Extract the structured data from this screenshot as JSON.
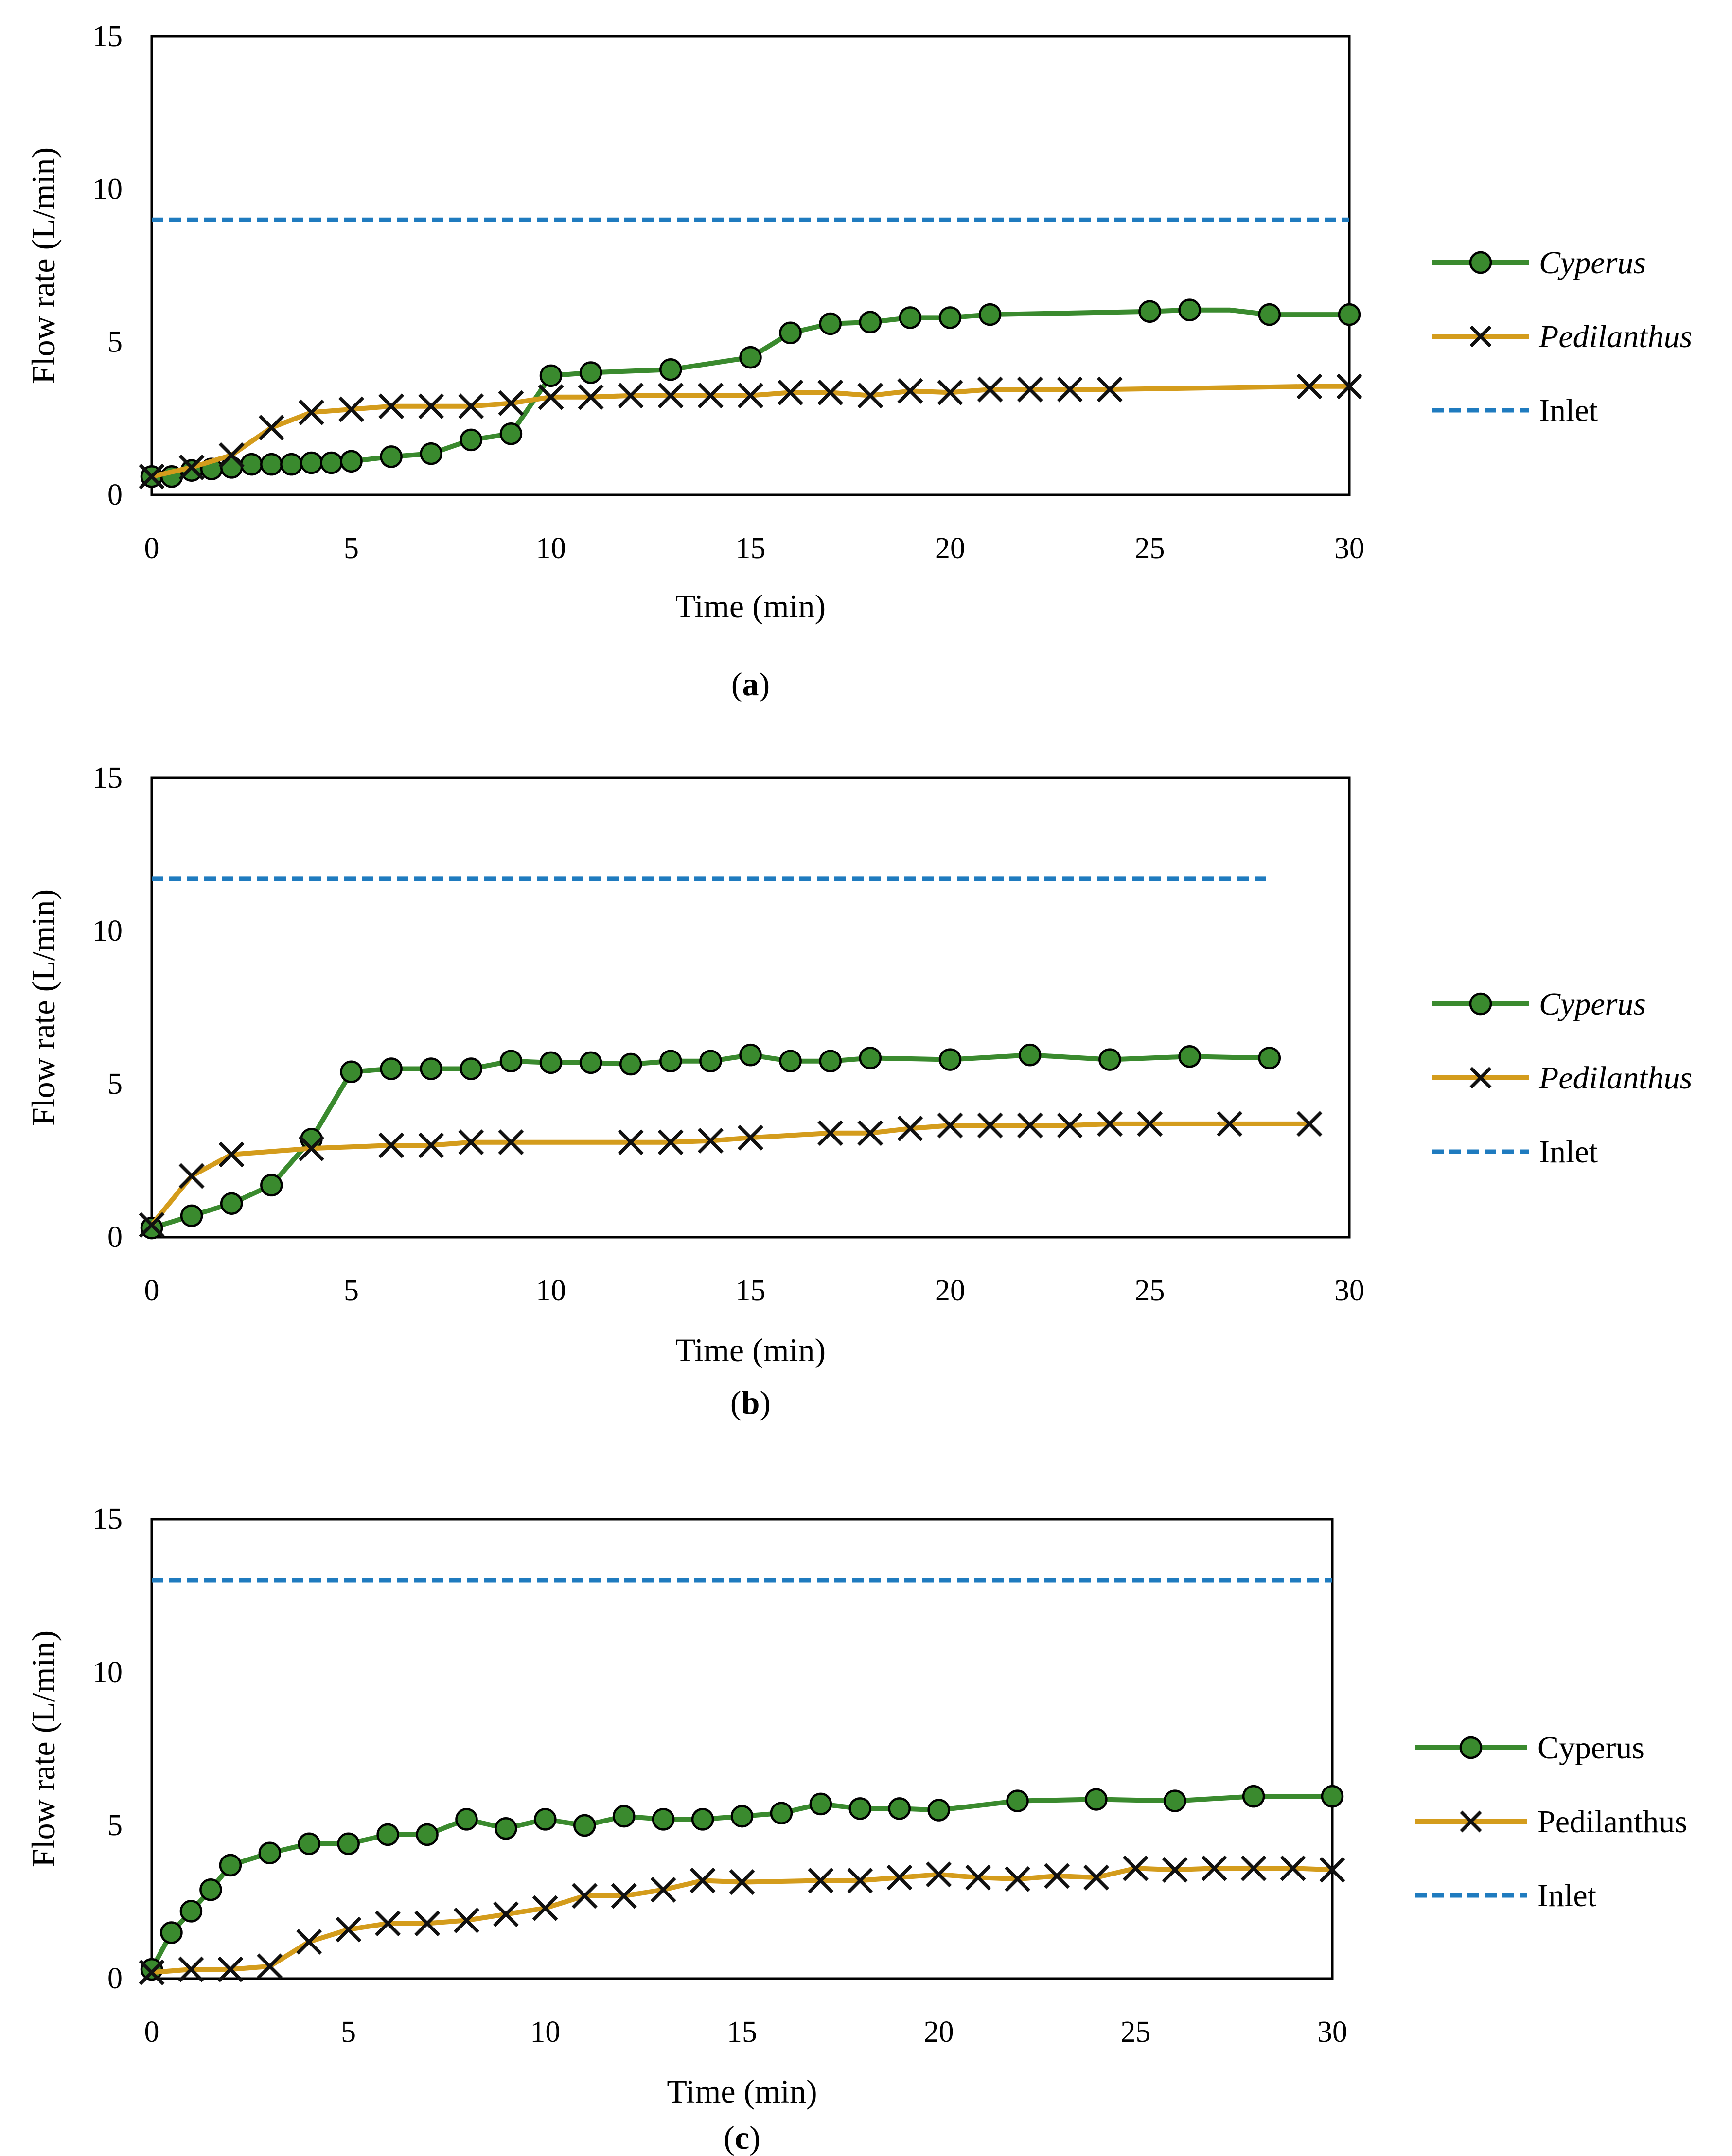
{
  "figure": {
    "panels": [
      {
        "id": "a",
        "caption_open": "(",
        "caption_letter": "a",
        "caption_close": ")",
        "legend_italic": true,
        "chart_data": {
          "type": "line",
          "title": "",
          "xlabel": "Time (min)",
          "ylabel": "Flow rate (L/min)",
          "xlim": [
            0,
            30
          ],
          "ylim": [
            0,
            15
          ],
          "xticks": [
            0,
            5,
            10,
            15,
            20,
            25,
            30
          ],
          "yticks": [
            0,
            5,
            10,
            15
          ],
          "grid": false,
          "legend_position": "right",
          "series": [
            {
              "name": "Cyperus",
              "color": "#3a8a2e",
              "marker": "circle",
              "x": [
                0,
                0.5,
                1,
                1.5,
                2,
                2.5,
                3,
                3.5,
                4,
                4.5,
                5,
                6,
                7,
                8,
                9,
                10,
                11,
                13,
                15,
                16,
                17,
                18,
                19,
                20,
                21,
                25,
                26,
                27,
                28,
                30
              ],
              "y": [
                0.6,
                0.6,
                0.8,
                0.85,
                0.9,
                1.0,
                1.0,
                1.0,
                1.05,
                1.05,
                1.1,
                1.25,
                1.35,
                1.8,
                2.0,
                3.9,
                4.0,
                4.1,
                4.5,
                5.3,
                5.6,
                5.65,
                5.8,
                5.8,
                5.9,
                6.0,
                6.05,
                6.05,
                5.9,
                5.9
              ],
              "marked": [
                true,
                true,
                true,
                true,
                true,
                true,
                true,
                true,
                true,
                true,
                true,
                true,
                true,
                true,
                true,
                true,
                true,
                true,
                true,
                true,
                true,
                true,
                true,
                true,
                true,
                true,
                true,
                false,
                true,
                true
              ]
            },
            {
              "name": "Pedilanthus",
              "color": "#d49c1c",
              "marker": "x",
              "x": [
                0,
                1,
                2,
                3,
                4,
                5,
                6,
                7,
                8,
                9,
                10,
                11,
                12,
                13,
                14,
                15,
                16,
                17,
                18,
                19,
                20,
                21,
                22,
                23,
                24,
                29,
                30
              ],
              "y": [
                0.6,
                0.9,
                1.3,
                2.2,
                2.7,
                2.8,
                2.9,
                2.9,
                2.9,
                3.0,
                3.2,
                3.2,
                3.25,
                3.25,
                3.25,
                3.25,
                3.35,
                3.35,
                3.25,
                3.4,
                3.35,
                3.45,
                3.45,
                3.45,
                3.45,
                3.55,
                3.55
              ],
              "marked": [
                true,
                true,
                true,
                true,
                true,
                true,
                true,
                true,
                true,
                true,
                true,
                true,
                true,
                true,
                true,
                true,
                true,
                true,
                true,
                true,
                true,
                true,
                true,
                true,
                true,
                true,
                true
              ]
            },
            {
              "name": "Inlet",
              "color": "#1f7bbf",
              "marker": "none",
              "dashed": true,
              "x": [
                0,
                30
              ],
              "y": [
                9.0,
                9.0
              ]
            }
          ]
        }
      },
      {
        "id": "b",
        "caption_open": "(",
        "caption_letter": "b",
        "caption_close": ")",
        "legend_italic": true,
        "chart_data": {
          "type": "line",
          "title": "",
          "xlabel": "Time (min)",
          "ylabel": "Flow rate (L/min)",
          "xlim": [
            0,
            30
          ],
          "ylim": [
            0,
            15
          ],
          "xticks": [
            0,
            5,
            10,
            15,
            20,
            25,
            30
          ],
          "yticks": [
            0,
            5,
            10,
            15
          ],
          "grid": false,
          "legend_position": "right",
          "series": [
            {
              "name": "Cyperus",
              "color": "#3a8a2e",
              "marker": "circle",
              "x": [
                0,
                1,
                2,
                3,
                4,
                5,
                6,
                7,
                8,
                9,
                10,
                11,
                12,
                13,
                14,
                15,
                16,
                17,
                18,
                20,
                22,
                24,
                26,
                28
              ],
              "y": [
                0.3,
                0.7,
                1.1,
                1.7,
                3.2,
                5.4,
                5.5,
                5.5,
                5.5,
                5.75,
                5.7,
                5.7,
                5.65,
                5.75,
                5.75,
                5.95,
                5.75,
                5.75,
                5.85,
                5.8,
                5.95,
                5.8,
                5.9,
                5.85
              ],
              "marked": [
                true,
                true,
                true,
                true,
                true,
                true,
                true,
                true,
                true,
                true,
                true,
                true,
                true,
                true,
                true,
                true,
                true,
                true,
                true,
                true,
                true,
                true,
                true,
                true
              ]
            },
            {
              "name": "Pedilanthus",
              "color": "#d49c1c",
              "marker": "x",
              "x": [
                0,
                1,
                2,
                4,
                6,
                7,
                8,
                9,
                12,
                13,
                14,
                15,
                17,
                18,
                19,
                20,
                21,
                22,
                23,
                24,
                25,
                27,
                29
              ],
              "y": [
                0.4,
                2.0,
                2.7,
                2.9,
                3.0,
                3.0,
                3.1,
                3.1,
                3.1,
                3.1,
                3.15,
                3.25,
                3.4,
                3.4,
                3.55,
                3.65,
                3.65,
                3.65,
                3.65,
                3.7,
                3.7,
                3.7,
                3.7
              ],
              "marked": [
                true,
                true,
                true,
                true,
                true,
                true,
                true,
                true,
                true,
                true,
                true,
                true,
                true,
                true,
                true,
                true,
                true,
                true,
                true,
                true,
                true,
                true,
                true
              ]
            },
            {
              "name": "Inlet",
              "color": "#1f7bbf",
              "marker": "none",
              "dashed": true,
              "x": [
                0,
                28
              ],
              "y": [
                11.7,
                11.7
              ]
            }
          ]
        }
      },
      {
        "id": "c",
        "caption_open": "(",
        "caption_letter": "c",
        "caption_close": ")",
        "legend_italic": false,
        "chart_data": {
          "type": "line",
          "title": "",
          "xlabel": "Time (min)",
          "ylabel": "Flow rate (L/min)",
          "xlim": [
            0,
            30
          ],
          "ylim": [
            0,
            15
          ],
          "xticks": [
            0,
            5,
            10,
            15,
            20,
            25,
            30
          ],
          "yticks": [
            0,
            5,
            10,
            15
          ],
          "grid": false,
          "legend_position": "right",
          "series": [
            {
              "name": "Cyperus",
              "color": "#3a8a2e",
              "marker": "circle",
              "x": [
                0,
                0.5,
                1,
                1.5,
                2,
                3,
                4,
                5,
                6,
                7,
                8,
                9,
                10,
                11,
                12,
                13,
                14,
                15,
                16,
                17,
                18,
                19,
                20,
                22,
                24,
                26,
                28,
                30
              ],
              "y": [
                0.3,
                1.5,
                2.2,
                2.9,
                3.7,
                4.1,
                4.4,
                4.4,
                4.7,
                4.7,
                5.2,
                4.9,
                5.2,
                5.0,
                5.3,
                5.2,
                5.2,
                5.3,
                5.4,
                5.7,
                5.55,
                5.55,
                5.5,
                5.8,
                5.85,
                5.8,
                5.95,
                5.95
              ],
              "marked": [
                true,
                true,
                true,
                true,
                true,
                true,
                true,
                true,
                true,
                true,
                true,
                true,
                true,
                true,
                true,
                true,
                true,
                true,
                true,
                true,
                true,
                true,
                true,
                true,
                true,
                true,
                true,
                true
              ]
            },
            {
              "name": "Pedilanthus",
              "color": "#d49c1c",
              "marker": "x",
              "x": [
                0,
                1,
                2,
                3,
                4,
                5,
                6,
                7,
                8,
                9,
                10,
                11,
                12,
                13,
                14,
                15,
                17,
                18,
                19,
                20,
                21,
                22,
                23,
                24,
                25,
                26,
                27,
                28,
                29,
                30
              ],
              "y": [
                0.2,
                0.3,
                0.3,
                0.4,
                1.2,
                1.6,
                1.8,
                1.8,
                1.9,
                2.1,
                2.3,
                2.7,
                2.7,
                2.9,
                3.2,
                3.15,
                3.2,
                3.2,
                3.3,
                3.4,
                3.3,
                3.25,
                3.35,
                3.3,
                3.6,
                3.55,
                3.6,
                3.6,
                3.6,
                3.55
              ],
              "marked": [
                true,
                true,
                true,
                true,
                true,
                true,
                true,
                true,
                true,
                true,
                true,
                true,
                true,
                true,
                true,
                true,
                true,
                true,
                true,
                true,
                true,
                true,
                true,
                true,
                true,
                true,
                true,
                true,
                true,
                true
              ]
            },
            {
              "name": "Inlet",
              "color": "#1f7bbf",
              "marker": "none",
              "dashed": true,
              "x": [
                0,
                30
              ],
              "y": [
                13.0,
                13.0
              ]
            }
          ]
        }
      }
    ]
  }
}
